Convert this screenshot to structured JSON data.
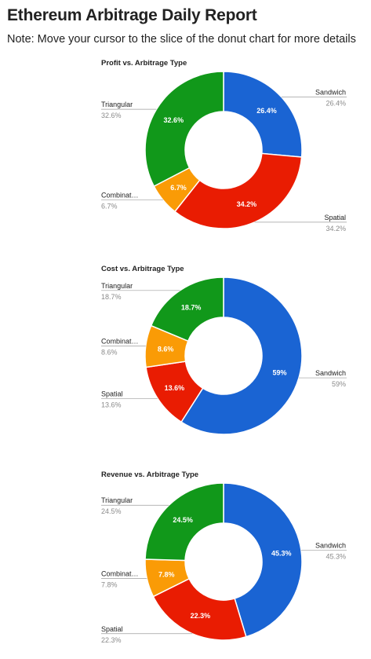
{
  "page": {
    "title": "Ethereum Arbitrage Daily Report",
    "note": "Note: Move your cursor to the slice of the donut chart for more details"
  },
  "chart_data": [
    {
      "type": "pie",
      "donut": true,
      "title": "Profit vs. Arbitrage Type",
      "slices": [
        {
          "label": "Sandwich",
          "legend_label": "Sandwich",
          "value": 26.4,
          "display": "26.4%",
          "color": "#1a64d3"
        },
        {
          "label": "Spatial",
          "legend_label": "Spatial",
          "value": 34.2,
          "display": "34.2%",
          "color": "#e91c02"
        },
        {
          "label": "Combination",
          "legend_label": "Combinat…",
          "value": 6.7,
          "display": "6.7%",
          "color": "#fa9b06"
        },
        {
          "label": "Triangular",
          "legend_label": "Triangular",
          "value": 32.6,
          "display": "32.6%",
          "color": "#11981a"
        }
      ]
    },
    {
      "type": "pie",
      "donut": true,
      "title": "Cost vs. Arbitrage Type",
      "slices": [
        {
          "label": "Sandwich",
          "legend_label": "Sandwich",
          "value": 59,
          "display": "59%",
          "color": "#1a64d3"
        },
        {
          "label": "Spatial",
          "legend_label": "Spatial",
          "value": 13.6,
          "display": "13.6%",
          "color": "#e91c02"
        },
        {
          "label": "Combination",
          "legend_label": "Combinat…",
          "value": 8.6,
          "display": "8.6%",
          "color": "#fa9b06"
        },
        {
          "label": "Triangular",
          "legend_label": "Triangular",
          "value": 18.7,
          "display": "18.7%",
          "color": "#11981a"
        }
      ]
    },
    {
      "type": "pie",
      "donut": true,
      "title": "Revenue vs. Arbitrage Type",
      "slices": [
        {
          "label": "Sandwich",
          "legend_label": "Sandwich",
          "value": 45.3,
          "display": "45.3%",
          "color": "#1a64d3"
        },
        {
          "label": "Spatial",
          "legend_label": "Spatial",
          "value": 22.3,
          "display": "22.3%",
          "color": "#e91c02"
        },
        {
          "label": "Combination",
          "legend_label": "Combinat…",
          "value": 7.8,
          "display": "7.8%",
          "color": "#fa9b06"
        },
        {
          "label": "Triangular",
          "legend_label": "Triangular",
          "value": 24.5,
          "display": "24.5%",
          "color": "#11981a"
        }
      ]
    }
  ]
}
